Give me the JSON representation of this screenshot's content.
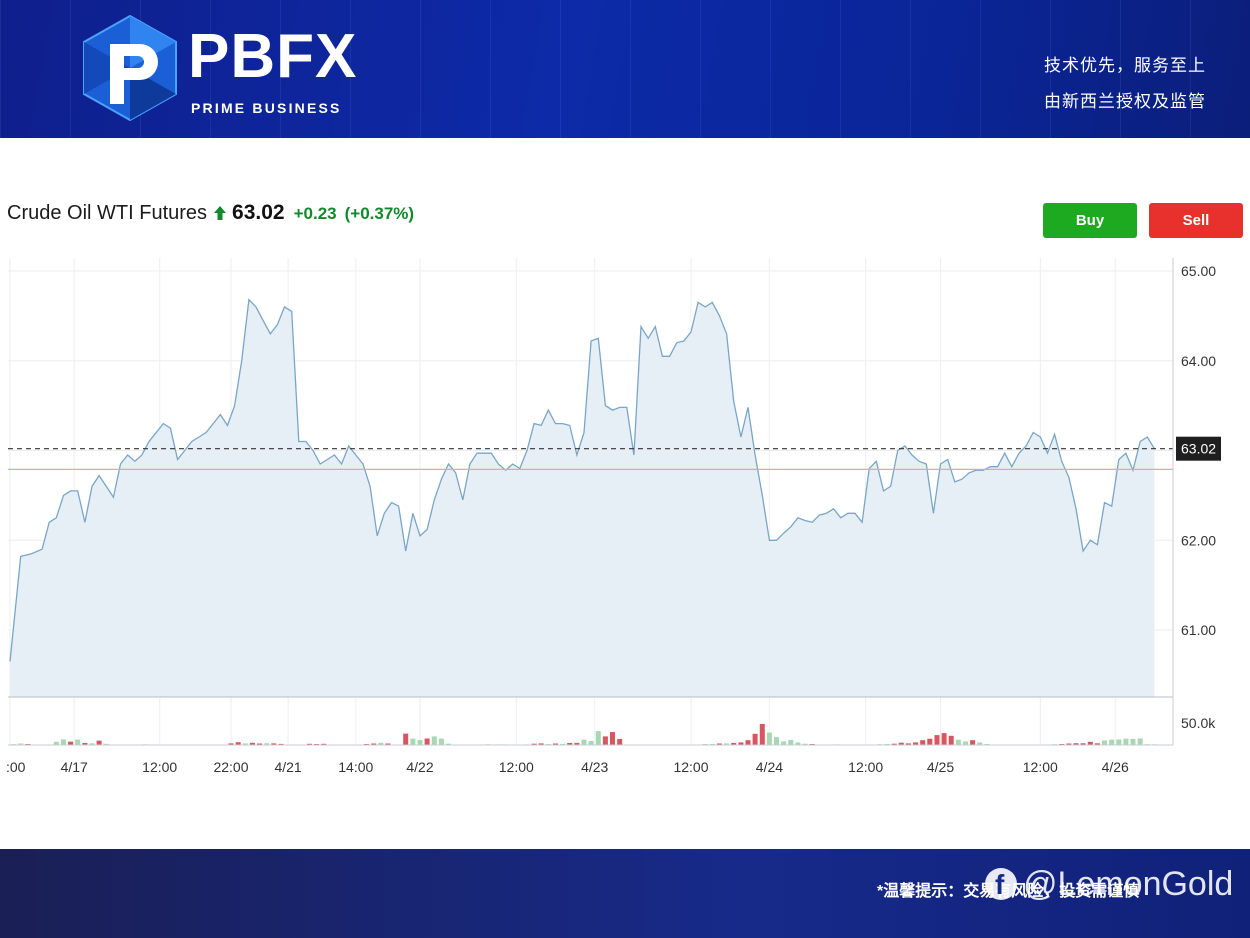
{
  "header": {
    "brand_name": "PBFX",
    "brand_tagline": "PRIME BUSINESS",
    "slogan_line1": "技术优先，服务至上",
    "slogan_line2": "由新西兰授权及监管",
    "background_color": "#0d2aa8"
  },
  "instrument": {
    "name": "Crude Oil WTI Futures",
    "last_price": "63.02",
    "change": "+0.23",
    "change_percent": "(+0.37%)",
    "direction_icon": "up-arrow-icon",
    "positive_color": "#0f8a2c"
  },
  "actions": {
    "buy_label": "Buy",
    "sell_label": "Sell",
    "buy_color": "#1eaa20",
    "sell_color": "#e8312d"
  },
  "footer": {
    "note": "*温馨提示：交易有风险，投资需谨慎",
    "watermark": "@LemonGold"
  },
  "chart_data": {
    "type": "area",
    "title": "Crude Oil WTI Futures",
    "ylim": [
      60.2,
      65.0
    ],
    "y_ticks": [
      "65.00",
      "64.00",
      "62.00",
      "61.00"
    ],
    "last_price_label": "63.02",
    "last_price_value": 63.02,
    "previous_close_value": 62.79,
    "volume_tick_label": "50.0k",
    "volume_max": 50000,
    "x_ticks": [
      {
        "label": ":00",
        "x": 0
      },
      {
        "label": "4/17",
        "x": 18
      },
      {
        "label": "12:00",
        "x": 42
      },
      {
        "label": "22:00",
        "x": 62
      },
      {
        "label": "4/21",
        "x": 78
      },
      {
        "label": "14:00",
        "x": 97
      },
      {
        "label": "4/22",
        "x": 115
      },
      {
        "label": "12:00",
        "x": 142
      },
      {
        "label": "4/23",
        "x": 164
      },
      {
        "label": "12:00",
        "x": 191
      },
      {
        "label": "4/24",
        "x": 213
      },
      {
        "label": "12:00",
        "x": 240
      },
      {
        "label": "4/25",
        "x": 261
      },
      {
        "label": "12:00",
        "x": 289
      },
      {
        "label": "4/26",
        "x": 310
      }
    ],
    "price_series": [
      [
        0,
        60.65
      ],
      [
        3,
        61.82
      ],
      [
        6,
        61.85
      ],
      [
        9,
        61.9
      ],
      [
        11,
        62.2
      ],
      [
        13,
        62.25
      ],
      [
        15,
        62.5
      ],
      [
        17,
        62.55
      ],
      [
        19,
        62.55
      ],
      [
        21,
        62.2
      ],
      [
        23,
        62.6
      ],
      [
        25,
        62.72
      ],
      [
        27,
        62.6
      ],
      [
        29,
        62.48
      ],
      [
        31,
        62.85
      ],
      [
        33,
        62.95
      ],
      [
        35,
        62.88
      ],
      [
        37,
        62.95
      ],
      [
        39,
        63.1
      ],
      [
        41,
        63.2
      ],
      [
        43,
        63.3
      ],
      [
        45,
        63.25
      ],
      [
        47,
        62.9
      ],
      [
        49,
        63.0
      ],
      [
        51,
        63.1
      ],
      [
        53,
        63.15
      ],
      [
        55,
        63.2
      ],
      [
        57,
        63.3
      ],
      [
        59,
        63.4
      ],
      [
        61,
        63.28
      ],
      [
        63,
        63.5
      ],
      [
        65,
        64.0
      ],
      [
        67,
        64.68
      ],
      [
        69,
        64.6
      ],
      [
        71,
        64.45
      ],
      [
        73,
        64.3
      ],
      [
        75,
        64.4
      ],
      [
        77,
        64.6
      ],
      [
        79,
        64.55
      ],
      [
        81,
        63.1
      ],
      [
        83,
        63.1
      ],
      [
        85,
        63.0
      ],
      [
        87,
        62.85
      ],
      [
        89,
        62.9
      ],
      [
        91,
        62.95
      ],
      [
        93,
        62.85
      ],
      [
        95,
        63.05
      ],
      [
        97,
        62.95
      ],
      [
        99,
        62.85
      ],
      [
        101,
        62.6
      ],
      [
        103,
        62.05
      ],
      [
        105,
        62.3
      ],
      [
        107,
        62.42
      ],
      [
        109,
        62.38
      ],
      [
        111,
        61.88
      ],
      [
        113,
        62.3
      ],
      [
        115,
        62.05
      ],
      [
        117,
        62.12
      ],
      [
        119,
        62.45
      ],
      [
        121,
        62.68
      ],
      [
        123,
        62.85
      ],
      [
        125,
        62.75
      ],
      [
        127,
        62.45
      ],
      [
        129,
        62.85
      ],
      [
        131,
        62.97
      ],
      [
        133,
        62.97
      ],
      [
        135,
        62.97
      ],
      [
        137,
        62.85
      ],
      [
        139,
        62.78
      ],
      [
        141,
        62.85
      ],
      [
        143,
        62.8
      ],
      [
        145,
        63.0
      ],
      [
        147,
        63.3
      ],
      [
        149,
        63.28
      ],
      [
        151,
        63.45
      ],
      [
        153,
        63.3
      ],
      [
        155,
        63.3
      ],
      [
        157,
        63.28
      ],
      [
        159,
        62.95
      ],
      [
        161,
        63.2
      ],
      [
        163,
        64.22
      ],
      [
        165,
        64.25
      ],
      [
        167,
        63.5
      ],
      [
        169,
        63.45
      ],
      [
        171,
        63.48
      ],
      [
        173,
        63.48
      ],
      [
        175,
        62.95
      ],
      [
        177,
        64.38
      ],
      [
        179,
        64.25
      ],
      [
        181,
        64.38
      ],
      [
        183,
        64.05
      ],
      [
        185,
        64.05
      ],
      [
        187,
        64.2
      ],
      [
        189,
        64.22
      ],
      [
        191,
        64.32
      ],
      [
        193,
        64.65
      ],
      [
        195,
        64.6
      ],
      [
        197,
        64.65
      ],
      [
        199,
        64.5
      ],
      [
        201,
        64.3
      ],
      [
        203,
        63.55
      ],
      [
        205,
        63.15
      ],
      [
        207,
        63.48
      ],
      [
        209,
        62.95
      ],
      [
        211,
        62.5
      ],
      [
        213,
        62.0
      ],
      [
        215,
        62.0
      ],
      [
        217,
        62.08
      ],
      [
        219,
        62.15
      ],
      [
        221,
        62.25
      ],
      [
        223,
        62.22
      ],
      [
        225,
        62.2
      ],
      [
        227,
        62.28
      ],
      [
        229,
        62.3
      ],
      [
        231,
        62.35
      ],
      [
        233,
        62.25
      ],
      [
        235,
        62.3
      ],
      [
        237,
        62.3
      ],
      [
        239,
        62.2
      ],
      [
        241,
        62.8
      ],
      [
        243,
        62.88
      ],
      [
        245,
        62.55
      ],
      [
        247,
        62.6
      ],
      [
        249,
        63.0
      ],
      [
        251,
        63.05
      ],
      [
        253,
        62.95
      ],
      [
        255,
        62.88
      ],
      [
        257,
        62.85
      ],
      [
        259,
        62.3
      ],
      [
        261,
        62.85
      ],
      [
        263,
        62.9
      ],
      [
        265,
        62.65
      ],
      [
        267,
        62.68
      ],
      [
        269,
        62.75
      ],
      [
        271,
        62.78
      ],
      [
        273,
        62.78
      ],
      [
        275,
        62.82
      ],
      [
        277,
        62.82
      ],
      [
        279,
        62.97
      ],
      [
        281,
        62.82
      ],
      [
        283,
        62.97
      ],
      [
        285,
        63.05
      ],
      [
        287,
        63.2
      ],
      [
        289,
        63.15
      ],
      [
        291,
        62.97
      ],
      [
        293,
        63.18
      ],
      [
        295,
        62.88
      ],
      [
        297,
        62.7
      ],
      [
        299,
        62.35
      ],
      [
        301,
        61.88
      ],
      [
        303,
        62.0
      ],
      [
        305,
        61.95
      ],
      [
        307,
        62.42
      ],
      [
        309,
        62.38
      ],
      [
        311,
        62.9
      ],
      [
        313,
        62.97
      ],
      [
        315,
        62.78
      ],
      [
        317,
        63.1
      ],
      [
        319,
        63.15
      ],
      [
        321,
        63.02
      ]
    ],
    "volume_series": [
      [
        1,
        1200,
        "g"
      ],
      [
        3,
        2200,
        "g"
      ],
      [
        5,
        1500,
        "r"
      ],
      [
        7,
        800,
        "g"
      ],
      [
        13,
        4800,
        "g"
      ],
      [
        15,
        8500,
        "g"
      ],
      [
        17,
        5200,
        "r"
      ],
      [
        19,
        8200,
        "g"
      ],
      [
        21,
        3200,
        "r"
      ],
      [
        23,
        2600,
        "g"
      ],
      [
        25,
        6600,
        "r"
      ],
      [
        27,
        1800,
        "g"
      ],
      [
        29,
        700,
        "g"
      ],
      [
        38,
        1000,
        "g"
      ],
      [
        62,
        2500,
        "r"
      ],
      [
        64,
        4200,
        "r"
      ],
      [
        66,
        2600,
        "g"
      ],
      [
        68,
        3300,
        "r"
      ],
      [
        70,
        2200,
        "r"
      ],
      [
        72,
        2700,
        "g"
      ],
      [
        74,
        2500,
        "r"
      ],
      [
        76,
        1600,
        "r"
      ],
      [
        84,
        1800,
        "r"
      ],
      [
        86,
        1500,
        "r"
      ],
      [
        88,
        1800,
        "r"
      ],
      [
        100,
        1500,
        "r"
      ],
      [
        102,
        2300,
        "r"
      ],
      [
        104,
        3400,
        "g"
      ],
      [
        106,
        2200,
        "r"
      ],
      [
        111,
        17200,
        "r"
      ],
      [
        113,
        9500,
        "g"
      ],
      [
        115,
        7500,
        "g"
      ],
      [
        117,
        9800,
        "r"
      ],
      [
        119,
        13000,
        "g"
      ],
      [
        121,
        9800,
        "g"
      ],
      [
        123,
        2000,
        "g"
      ],
      [
        134,
        900,
        "r"
      ],
      [
        137,
        900,
        "g"
      ],
      [
        139,
        900,
        "g"
      ],
      [
        145,
        900,
        "g"
      ],
      [
        147,
        2000,
        "r"
      ],
      [
        149,
        2500,
        "r"
      ],
      [
        151,
        1500,
        "g"
      ],
      [
        153,
        2200,
        "r"
      ],
      [
        155,
        1500,
        "g"
      ],
      [
        157,
        3000,
        "r"
      ],
      [
        159,
        3200,
        "r"
      ],
      [
        161,
        8200,
        "g"
      ],
      [
        163,
        6000,
        "g"
      ],
      [
        165,
        21000,
        "g"
      ],
      [
        167,
        13000,
        "r"
      ],
      [
        169,
        19500,
        "r"
      ],
      [
        171,
        9200,
        "r"
      ],
      [
        195,
        1500,
        "g"
      ],
      [
        197,
        1500,
        "g"
      ],
      [
        199,
        2200,
        "r"
      ],
      [
        201,
        2500,
        "g"
      ],
      [
        203,
        3200,
        "r"
      ],
      [
        205,
        4000,
        "r"
      ],
      [
        207,
        7200,
        "r"
      ],
      [
        209,
        17000,
        "r"
      ],
      [
        211,
        32000,
        "r"
      ],
      [
        213,
        19000,
        "g"
      ],
      [
        215,
        12000,
        "g"
      ],
      [
        217,
        5500,
        "g"
      ],
      [
        219,
        7800,
        "g"
      ],
      [
        221,
        4000,
        "g"
      ],
      [
        223,
        2000,
        "g"
      ],
      [
        225,
        1500,
        "r"
      ],
      [
        232,
        900,
        "g"
      ],
      [
        244,
        1200,
        "g"
      ],
      [
        246,
        1500,
        "g"
      ],
      [
        248,
        2000,
        "r"
      ],
      [
        250,
        3500,
        "r"
      ],
      [
        252,
        2500,
        "r"
      ],
      [
        254,
        4000,
        "r"
      ],
      [
        256,
        7200,
        "r"
      ],
      [
        258,
        9500,
        "r"
      ],
      [
        260,
        15000,
        "r"
      ],
      [
        262,
        18000,
        "r"
      ],
      [
        264,
        14000,
        "r"
      ],
      [
        266,
        8000,
        "g"
      ],
      [
        268,
        5500,
        "g"
      ],
      [
        270,
        7200,
        "r"
      ],
      [
        272,
        4000,
        "g"
      ],
      [
        274,
        1500,
        "g"
      ],
      [
        283,
        800,
        "g"
      ],
      [
        293,
        1200,
        "g"
      ],
      [
        295,
        1500,
        "r"
      ],
      [
        297,
        2200,
        "r"
      ],
      [
        299,
        2800,
        "r"
      ],
      [
        301,
        2600,
        "r"
      ],
      [
        303,
        4800,
        "r"
      ],
      [
        305,
        2600,
        "r"
      ],
      [
        307,
        6800,
        "g"
      ],
      [
        309,
        8000,
        "g"
      ],
      [
        311,
        8500,
        "g"
      ],
      [
        313,
        9500,
        "g"
      ],
      [
        315,
        9300,
        "g"
      ],
      [
        317,
        10000,
        "g"
      ],
      [
        319,
        1200,
        "g"
      ],
      [
        321,
        1000,
        "g"
      ]
    ]
  }
}
